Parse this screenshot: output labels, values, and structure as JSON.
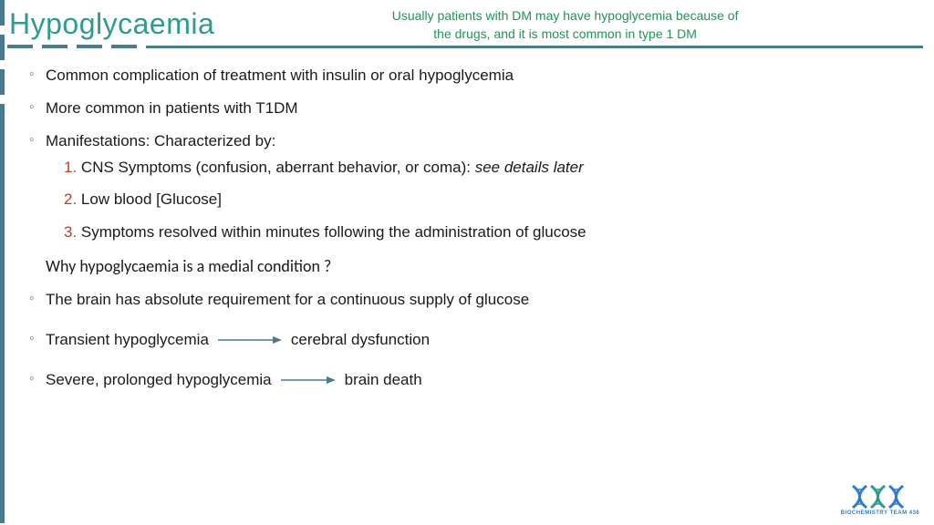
{
  "colors": {
    "title": "#2f9b8f",
    "subtitle": "#1a9850",
    "accent": "#4a7a8c",
    "bullet_marker": "#4a7a8c",
    "numbered_marker": "#c0392b",
    "body_text": "#1a1a1a",
    "logo_label": "#2f7dd0"
  },
  "header": {
    "title": "Hypoglycaemia",
    "subtitle_line1": "Usually patients with DM may have hypoglycemia because of",
    "subtitle_line2": "the drugs, and it is most common in type 1 DM"
  },
  "bullets": {
    "b1": "Common complication of treatment with insulin or oral hypoglycemia",
    "b2": "More common in patients with T1DM",
    "b3": "Manifestations: Characterized by:",
    "b4": "The brain has absolute requirement for a  continuous supply of glucose",
    "b5a": "Transient hypoglycemia",
    "b5b": "cerebral dysfunction",
    "b6a": "Severe, prolonged hypoglycemia",
    "b6b": "brain death"
  },
  "numbered": {
    "n1_num": "1.",
    "n1_text": " CNS Symptoms (confusion, aberrant behavior, or coma): ",
    "n1_italic": "see details later",
    "n2_num": "2.",
    "n2_text": " Low blood [Glucose]",
    "n3_num": "3.",
    "n3_text": " Symptoms resolved within minutes following the administration of glucose"
  },
  "subhead": "Why hypoglycaemia is a medial condition ?",
  "logo": {
    "label": "BIOCHEMISTRY TEAM 436"
  }
}
